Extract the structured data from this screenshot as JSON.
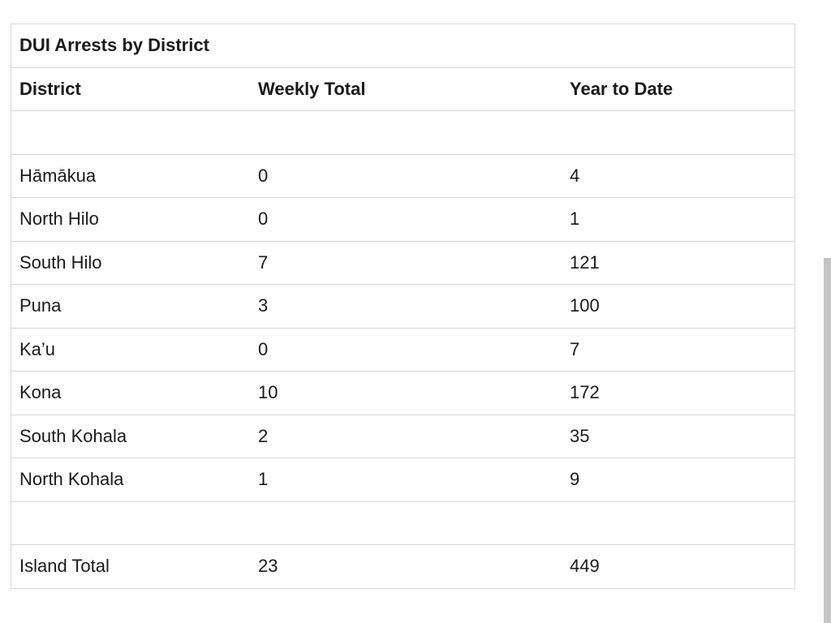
{
  "table": {
    "caption": "DUI Arrests by District",
    "headers": [
      "District",
      "Weekly Total",
      "Year to Date"
    ],
    "rows": [
      [
        "",
        "",
        ""
      ],
      [
        "Hāmākua",
        "0",
        "4"
      ],
      [
        "North Hilo",
        "0",
        "1"
      ],
      [
        "South Hilo",
        "7",
        "121"
      ],
      [
        "Puna",
        "3",
        "100"
      ],
      [
        "Ka’u",
        "0",
        "7"
      ],
      [
        "Kona",
        "10",
        "172"
      ],
      [
        "South Kohala",
        "2",
        "35"
      ],
      [
        "North Kohala",
        "1",
        "9"
      ],
      [
        "",
        "",
        ""
      ],
      [
        "Island Total",
        "23",
        "449"
      ]
    ]
  }
}
